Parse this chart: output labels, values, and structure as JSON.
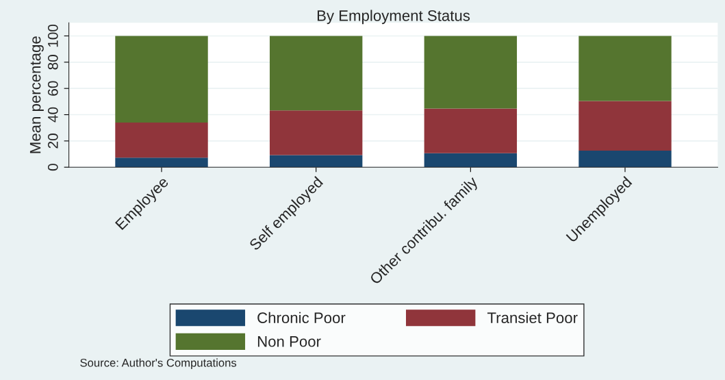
{
  "chart_data": {
    "type": "bar",
    "title": "By Employment Status",
    "ylabel": "Mean percentage",
    "stacked": true,
    "categories": [
      "Employee",
      "Self employed",
      "Other contribu. family",
      "Unemployed"
    ],
    "series": [
      {
        "name": "Chronic Poor",
        "color": "#1a476f",
        "values": [
          7.3,
          9.2,
          10.7,
          12.6
        ]
      },
      {
        "name": "Transiet Poor",
        "color": "#90353b",
        "values": [
          26.7,
          34,
          34,
          37.9
        ]
      },
      {
        "name": "Non Poor",
        "color": "#55752f",
        "values": [
          66,
          56.8,
          55.3,
          49.5
        ]
      }
    ],
    "ylim": [
      0,
      110
    ],
    "yticks": [
      0,
      20,
      40,
      60,
      80,
      100
    ],
    "grid": "y",
    "legend": "bottom",
    "annotations": [
      "Source: Author's Computations"
    ]
  }
}
